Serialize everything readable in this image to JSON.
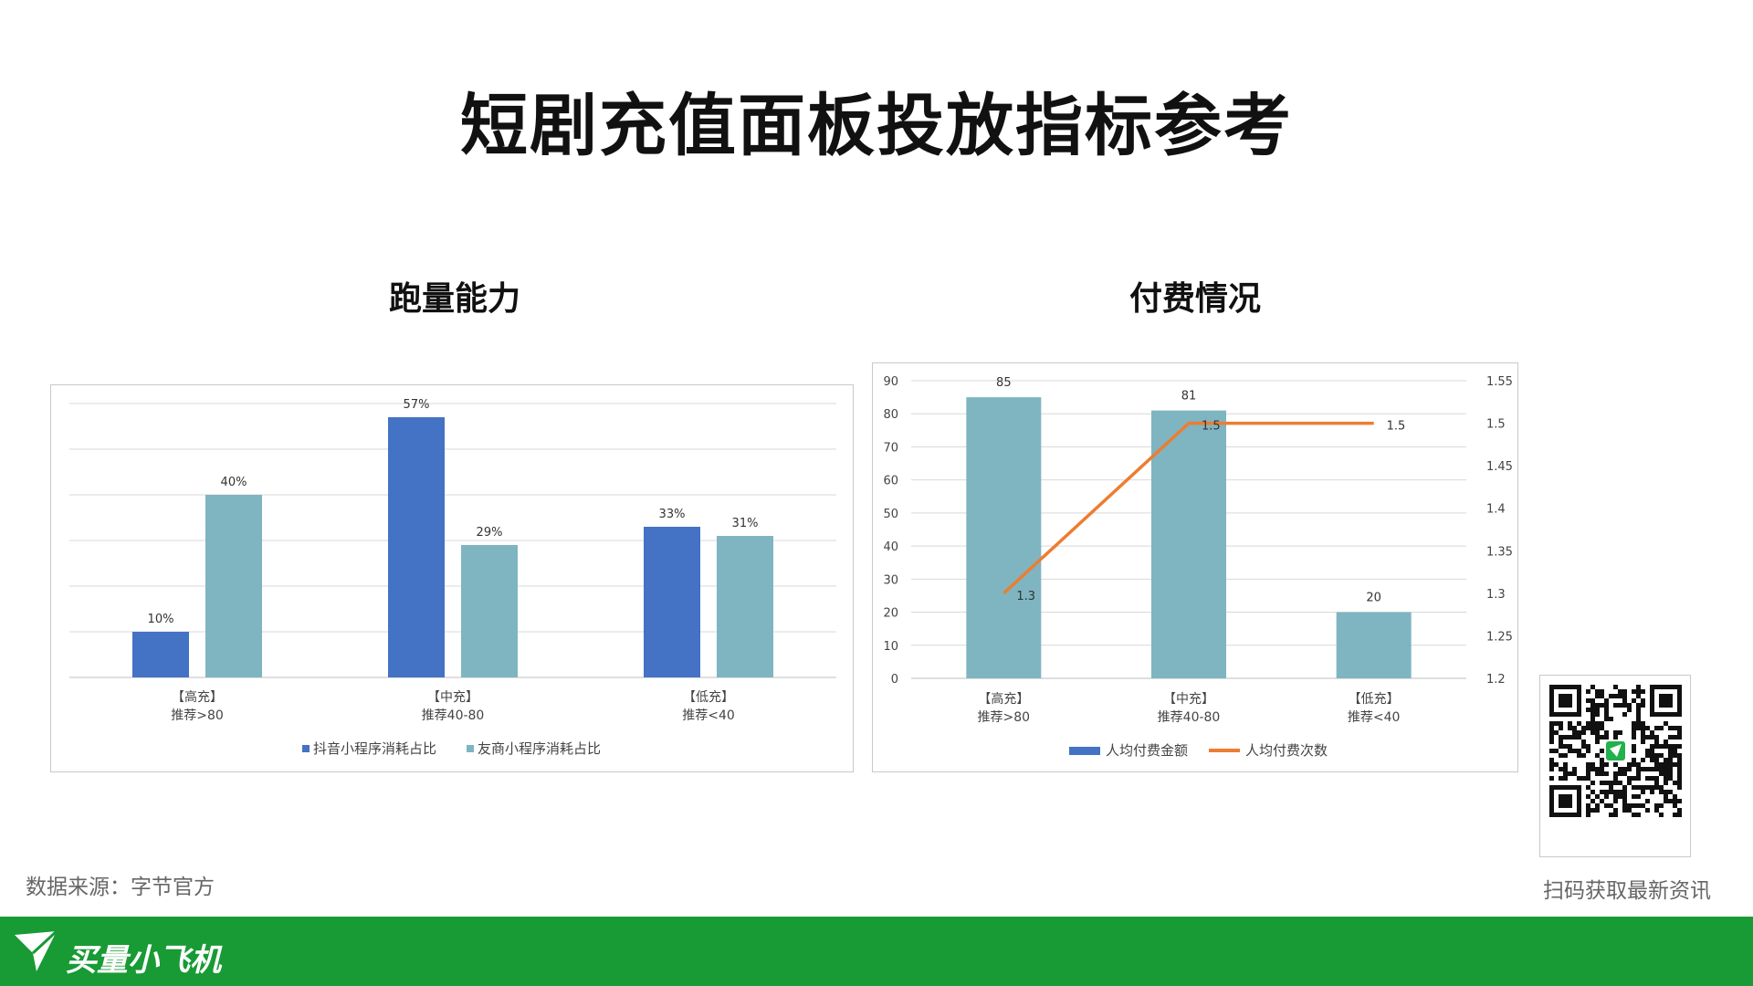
{
  "title": "短剧充值面板投放指标参考",
  "left_title": "跑量能力",
  "right_title": "付费情况",
  "source": "数据来源：字节官方",
  "qr_caption": "扫码获取最新资讯",
  "brand": "买量小飞机",
  "colors": {
    "blue": "#4472c4",
    "teal": "#7eb5c1",
    "orange": "#ed7d31",
    "green": "#189a34"
  },
  "chart_data": [
    {
      "type": "bar",
      "categories": [
        "【高充】\n推荐>80",
        "【中充】\n推荐40-80",
        "【低充】\n推荐<40"
      ],
      "series": [
        {
          "name": "抖音小程序消耗占比",
          "values": [
            10,
            57,
            33
          ],
          "labels": [
            "10%",
            "57%",
            "33%"
          ],
          "color": "#4472c4"
        },
        {
          "name": "友商小程序消耗占比",
          "values": [
            40,
            29,
            31
          ],
          "labels": [
            "40%",
            "29%",
            "31%"
          ],
          "color": "#7eb5c1"
        }
      ],
      "ylim": [
        0,
        60
      ],
      "y_axis_visible": false,
      "grid": true,
      "legend": "bottom"
    },
    {
      "type": "bar",
      "categories": [
        "【高充】\n推荐>80",
        "【中充】\n推荐40-80",
        "【低充】\n推荐<40"
      ],
      "series": [
        {
          "name": "人均付费金额",
          "type": "bar",
          "axis": "left",
          "values": [
            85,
            81,
            20
          ],
          "color": "#7eb5c1"
        },
        {
          "name": "人均付费次数",
          "type": "line",
          "axis": "right",
          "values": [
            1.3,
            1.5,
            1.5
          ],
          "color": "#ed7d31"
        }
      ],
      "legend_swatch_colors": [
        "#4472c4",
        "#ed7d31"
      ],
      "y_left": {
        "ticks": [
          "0",
          "10",
          "20",
          "30",
          "40",
          "50",
          "60",
          "70",
          "80",
          "90"
        ],
        "lim": [
          0,
          90
        ]
      },
      "y_right": {
        "ticks": [
          "1.2",
          "1.25",
          "1.3",
          "1.35",
          "1.4",
          "1.45",
          "1.5",
          "1.55"
        ],
        "lim": [
          1.2,
          1.55
        ]
      },
      "grid": true,
      "legend": "bottom"
    }
  ]
}
